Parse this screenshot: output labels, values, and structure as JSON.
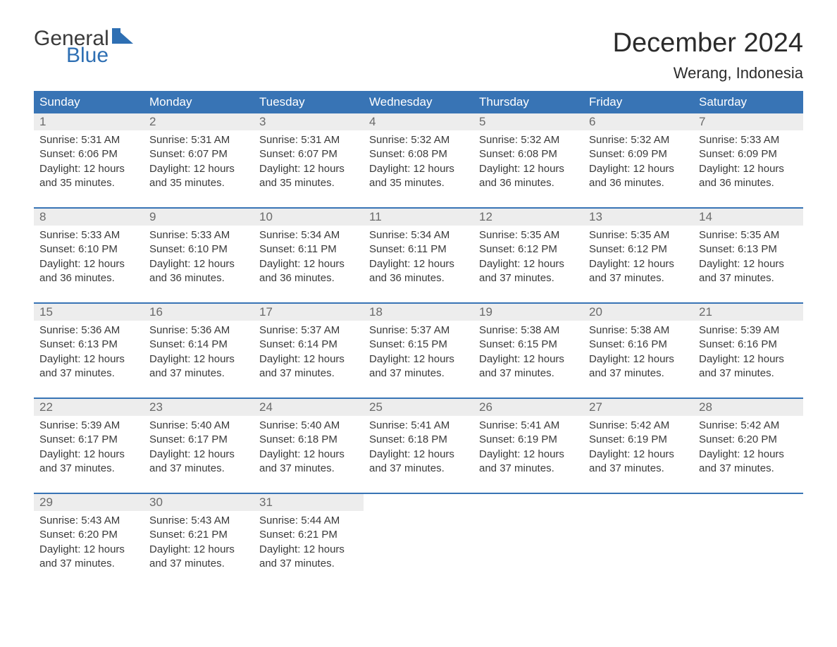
{
  "brand": {
    "word1": "General",
    "word2": "Blue",
    "accent_color": "#2e6fb3"
  },
  "title": "December 2024",
  "location": "Werang, Indonesia",
  "colors": {
    "header_bg": "#3874b5",
    "header_text": "#ffffff",
    "daynum_bg": "#ededed",
    "daynum_text": "#6a6a6a",
    "body_text": "#3a3a3a",
    "page_bg": "#ffffff"
  },
  "day_headers": [
    "Sunday",
    "Monday",
    "Tuesday",
    "Wednesday",
    "Thursday",
    "Friday",
    "Saturday"
  ],
  "fonts": {
    "title_size_pt": 38,
    "location_size_pt": 22,
    "header_size_pt": 17,
    "daynum_size_pt": 17,
    "detail_size_pt": 15
  },
  "labels": {
    "sunrise": "Sunrise",
    "sunset": "Sunset",
    "daylight": "Daylight"
  },
  "weeks": [
    [
      {
        "n": "1",
        "sunrise": "5:31 AM",
        "sunset": "6:06 PM",
        "daylight": "12 hours and 35 minutes."
      },
      {
        "n": "2",
        "sunrise": "5:31 AM",
        "sunset": "6:07 PM",
        "daylight": "12 hours and 35 minutes."
      },
      {
        "n": "3",
        "sunrise": "5:31 AM",
        "sunset": "6:07 PM",
        "daylight": "12 hours and 35 minutes."
      },
      {
        "n": "4",
        "sunrise": "5:32 AM",
        "sunset": "6:08 PM",
        "daylight": "12 hours and 35 minutes."
      },
      {
        "n": "5",
        "sunrise": "5:32 AM",
        "sunset": "6:08 PM",
        "daylight": "12 hours and 36 minutes."
      },
      {
        "n": "6",
        "sunrise": "5:32 AM",
        "sunset": "6:09 PM",
        "daylight": "12 hours and 36 minutes."
      },
      {
        "n": "7",
        "sunrise": "5:33 AM",
        "sunset": "6:09 PM",
        "daylight": "12 hours and 36 minutes."
      }
    ],
    [
      {
        "n": "8",
        "sunrise": "5:33 AM",
        "sunset": "6:10 PM",
        "daylight": "12 hours and 36 minutes."
      },
      {
        "n": "9",
        "sunrise": "5:33 AM",
        "sunset": "6:10 PM",
        "daylight": "12 hours and 36 minutes."
      },
      {
        "n": "10",
        "sunrise": "5:34 AM",
        "sunset": "6:11 PM",
        "daylight": "12 hours and 36 minutes."
      },
      {
        "n": "11",
        "sunrise": "5:34 AM",
        "sunset": "6:11 PM",
        "daylight": "12 hours and 36 minutes."
      },
      {
        "n": "12",
        "sunrise": "5:35 AM",
        "sunset": "6:12 PM",
        "daylight": "12 hours and 37 minutes."
      },
      {
        "n": "13",
        "sunrise": "5:35 AM",
        "sunset": "6:12 PM",
        "daylight": "12 hours and 37 minutes."
      },
      {
        "n": "14",
        "sunrise": "5:35 AM",
        "sunset": "6:13 PM",
        "daylight": "12 hours and 37 minutes."
      }
    ],
    [
      {
        "n": "15",
        "sunrise": "5:36 AM",
        "sunset": "6:13 PM",
        "daylight": "12 hours and 37 minutes."
      },
      {
        "n": "16",
        "sunrise": "5:36 AM",
        "sunset": "6:14 PM",
        "daylight": "12 hours and 37 minutes."
      },
      {
        "n": "17",
        "sunrise": "5:37 AM",
        "sunset": "6:14 PM",
        "daylight": "12 hours and 37 minutes."
      },
      {
        "n": "18",
        "sunrise": "5:37 AM",
        "sunset": "6:15 PM",
        "daylight": "12 hours and 37 minutes."
      },
      {
        "n": "19",
        "sunrise": "5:38 AM",
        "sunset": "6:15 PM",
        "daylight": "12 hours and 37 minutes."
      },
      {
        "n": "20",
        "sunrise": "5:38 AM",
        "sunset": "6:16 PM",
        "daylight": "12 hours and 37 minutes."
      },
      {
        "n": "21",
        "sunrise": "5:39 AM",
        "sunset": "6:16 PM",
        "daylight": "12 hours and 37 minutes."
      }
    ],
    [
      {
        "n": "22",
        "sunrise": "5:39 AM",
        "sunset": "6:17 PM",
        "daylight": "12 hours and 37 minutes."
      },
      {
        "n": "23",
        "sunrise": "5:40 AM",
        "sunset": "6:17 PM",
        "daylight": "12 hours and 37 minutes."
      },
      {
        "n": "24",
        "sunrise": "5:40 AM",
        "sunset": "6:18 PM",
        "daylight": "12 hours and 37 minutes."
      },
      {
        "n": "25",
        "sunrise": "5:41 AM",
        "sunset": "6:18 PM",
        "daylight": "12 hours and 37 minutes."
      },
      {
        "n": "26",
        "sunrise": "5:41 AM",
        "sunset": "6:19 PM",
        "daylight": "12 hours and 37 minutes."
      },
      {
        "n": "27",
        "sunrise": "5:42 AM",
        "sunset": "6:19 PM",
        "daylight": "12 hours and 37 minutes."
      },
      {
        "n": "28",
        "sunrise": "5:42 AM",
        "sunset": "6:20 PM",
        "daylight": "12 hours and 37 minutes."
      }
    ],
    [
      {
        "n": "29",
        "sunrise": "5:43 AM",
        "sunset": "6:20 PM",
        "daylight": "12 hours and 37 minutes."
      },
      {
        "n": "30",
        "sunrise": "5:43 AM",
        "sunset": "6:21 PM",
        "daylight": "12 hours and 37 minutes."
      },
      {
        "n": "31",
        "sunrise": "5:44 AM",
        "sunset": "6:21 PM",
        "daylight": "12 hours and 37 minutes."
      },
      null,
      null,
      null,
      null
    ]
  ]
}
